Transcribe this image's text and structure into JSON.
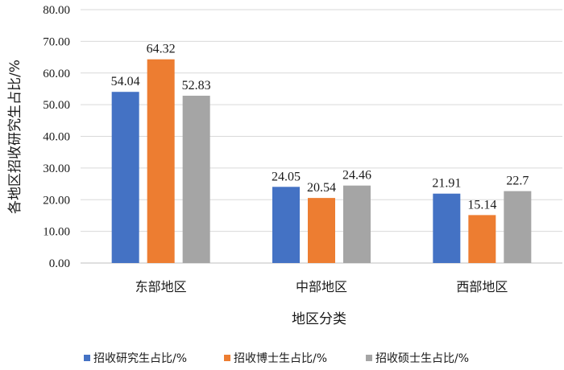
{
  "chart_data": {
    "type": "bar",
    "title": "",
    "xlabel": "地区分类",
    "ylabel": "各地区招收研究生占比/%",
    "ylim": [
      0,
      80
    ],
    "yticks": [
      "0.00",
      "10.00",
      "20.00",
      "30.00",
      "40.00",
      "50.00",
      "60.00",
      "70.00",
      "80.00"
    ],
    "categories": [
      "东部地区",
      "中部地区",
      "西部地区"
    ],
    "series": [
      {
        "name": "招收研究生占比/%",
        "color": "#4472c4",
        "values": [
          54.04,
          24.05,
          21.91
        ],
        "labels": [
          "54.04",
          "24.05",
          "21.91"
        ]
      },
      {
        "name": "招收博士生占比/%",
        "color": "#ed7d31",
        "values": [
          64.32,
          20.54,
          15.14
        ],
        "labels": [
          "64.32",
          "20.54",
          "15.14"
        ]
      },
      {
        "name": "招收硕士生占比/%",
        "color": "#a5a5a5",
        "values": [
          52.83,
          24.46,
          22.7
        ],
        "labels": [
          "52.83",
          "24.46",
          "22.7"
        ]
      }
    ],
    "grid": true,
    "legend": "bottom"
  }
}
